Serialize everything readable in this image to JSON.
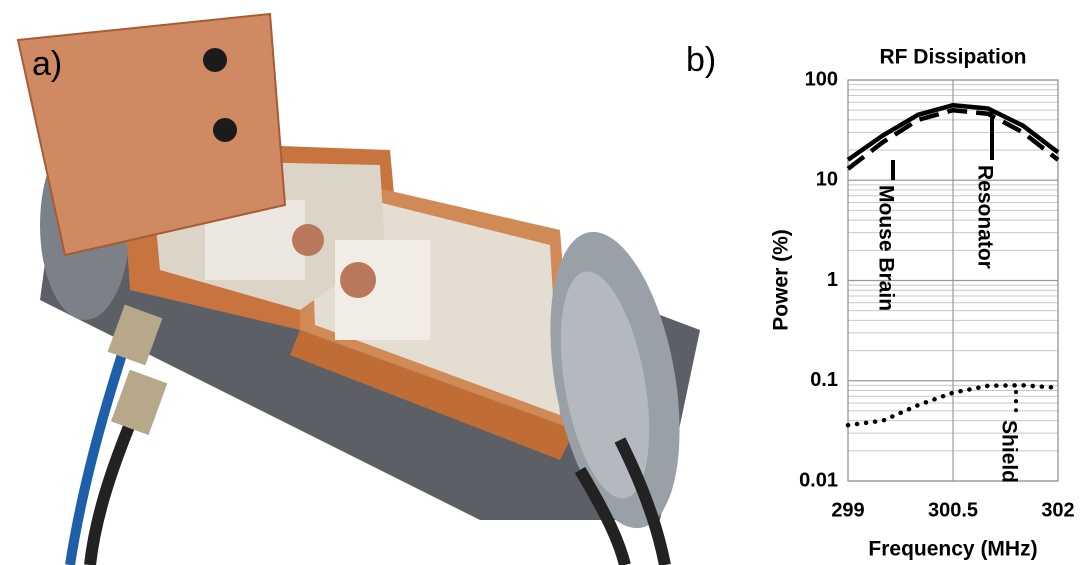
{
  "panel_labels": [
    "a)",
    "b)"
  ],
  "chart_data": {
    "type": "line",
    "title": "RF Dissipation",
    "x_label": "Frequency (MHz)",
    "y_label": "Power (%)",
    "x": [
      299,
      299.5,
      300,
      300.5,
      301,
      301.5,
      302
    ],
    "series": [
      {
        "name": "Resonator",
        "color": "#000000",
        "dash": "solid",
        "values": [
          16,
          28,
          45,
          56,
          52,
          35,
          19
        ]
      },
      {
        "name": "Mouse Brain",
        "color": "#000000",
        "dash": "dashed",
        "values": [
          13,
          24,
          40,
          50,
          46,
          30,
          16
        ]
      },
      {
        "name": "Shield",
        "color": "#000000",
        "dash": "dotted",
        "values": [
          0.036,
          0.04,
          0.057,
          0.076,
          0.089,
          0.09,
          0.085
        ]
      }
    ],
    "xlim": [
      299,
      302
    ],
    "xticks": [
      299,
      300.5,
      302
    ],
    "ylim": [
      0.01,
      100
    ],
    "yticks": [
      0.01,
      0.1,
      1,
      10,
      100
    ],
    "log_y": true,
    "grid": true
  }
}
